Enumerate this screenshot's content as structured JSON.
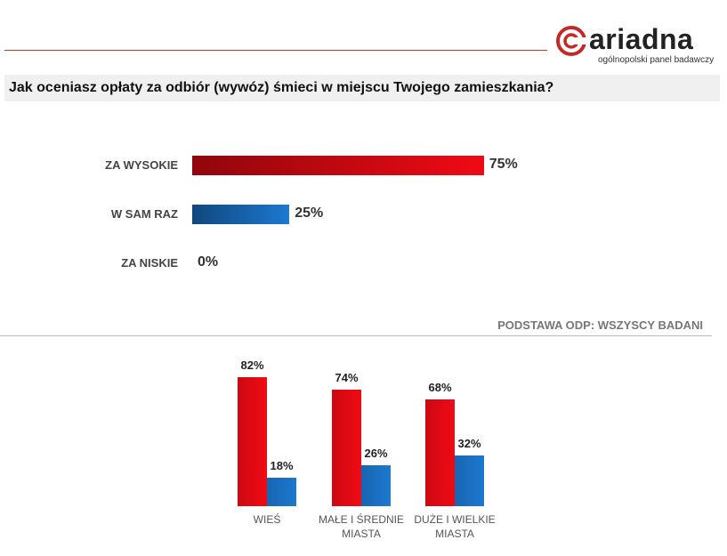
{
  "header": {
    "logo": "ariadna",
    "tagline": "ogólnopolski panel badawczy"
  },
  "chart_data": [
    {
      "type": "hbar",
      "title": "Jak oceniasz opłaty za odbiór (wywóz) śmieci w miejscu Twojego zamieszkania?",
      "categories": [
        "ZA WYSOKIE",
        "W SAM RAZ",
        "ZA NISKIE"
      ],
      "values": [
        75,
        25,
        0
      ],
      "value_labels": [
        "75%",
        "25%",
        "0%"
      ],
      "colors": [
        "#f00a14",
        "#1c78d0",
        "#1c78d0"
      ],
      "note": "PODSTAWA ODP: WSZYSCY BADANI"
    },
    {
      "type": "grouped-bar",
      "categories": [
        "WIEŚ",
        "MAŁE I ŚREDNIE MIASTA",
        "DUŻE I WIELKIE MIASTA"
      ],
      "series": [
        {
          "color": "#f00a14",
          "values": [
            82,
            74,
            68
          ],
          "value_labels": [
            "82%",
            "74%",
            "68%"
          ]
        },
        {
          "color": "#1c78d0",
          "values": [
            18,
            26,
            32
          ],
          "value_labels": [
            "18%",
            "26%",
            "32%"
          ]
        }
      ]
    }
  ]
}
